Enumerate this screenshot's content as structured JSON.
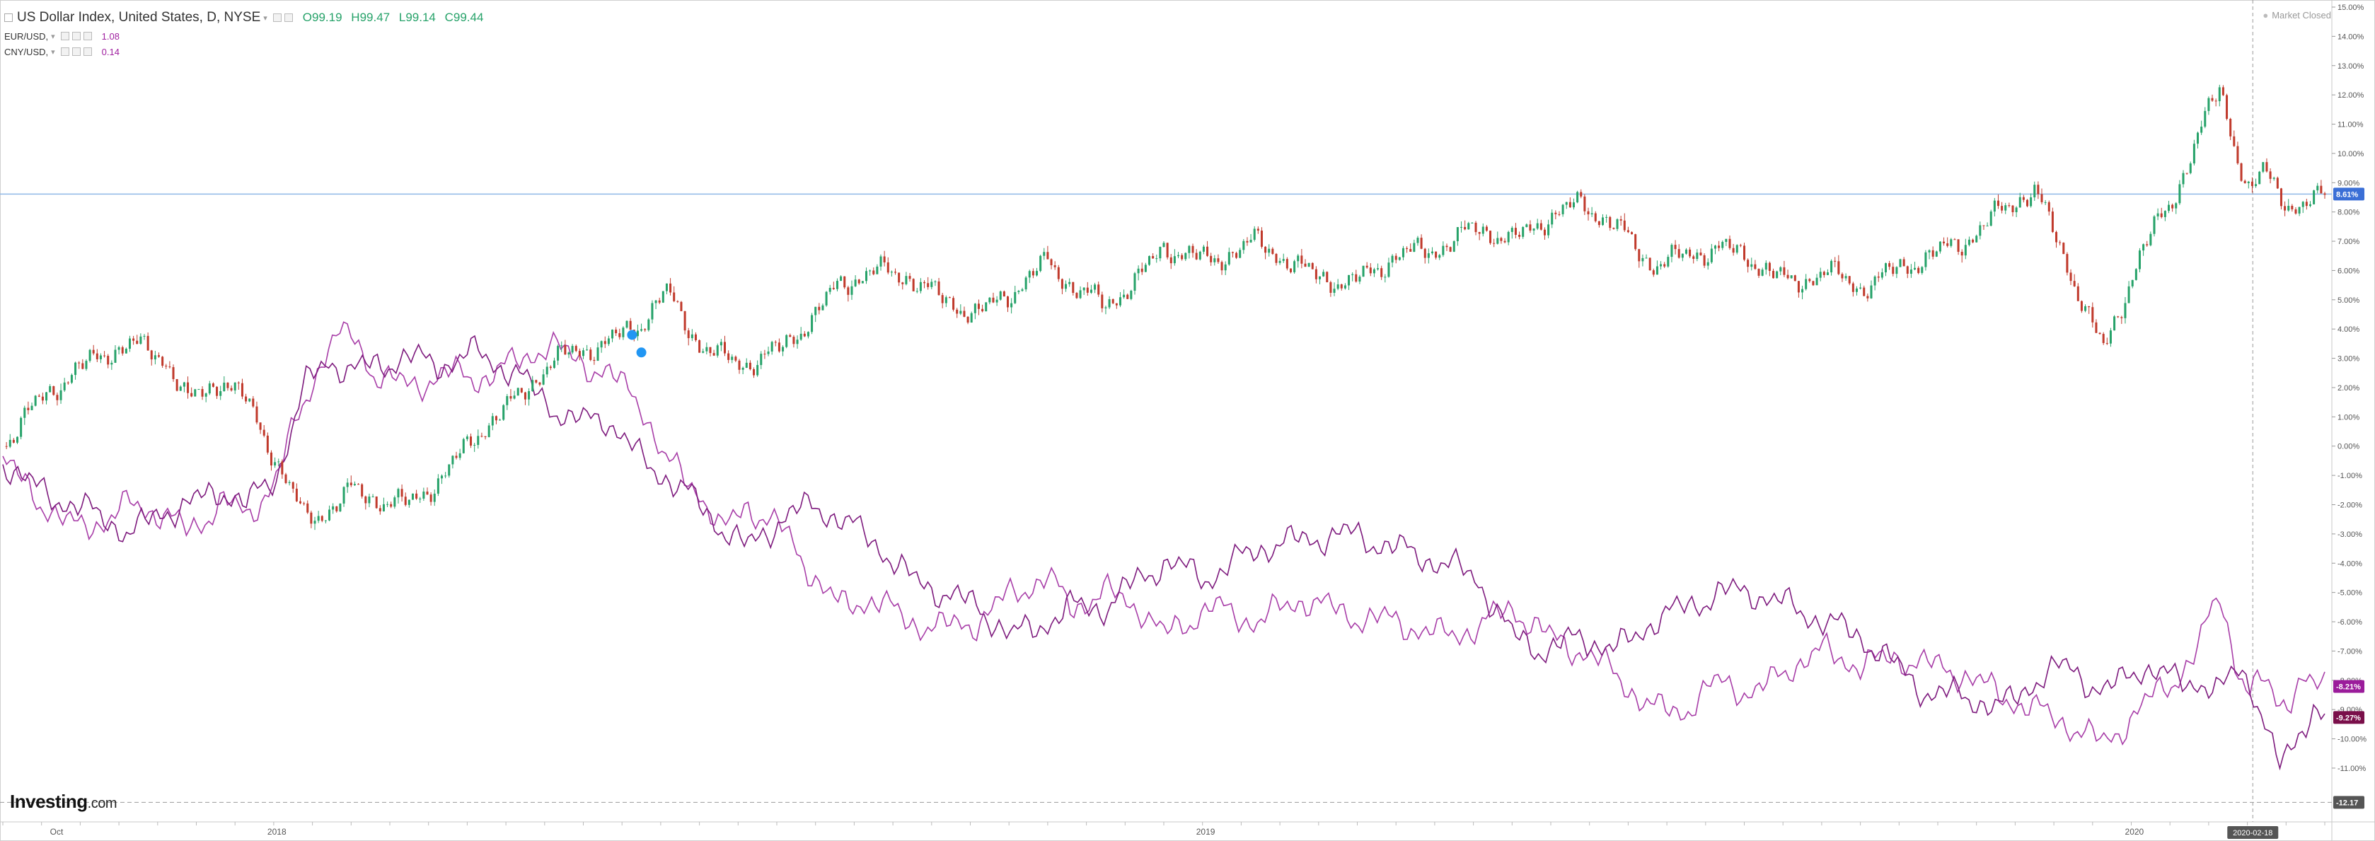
{
  "legend": {
    "main": {
      "name": "US Dollar Index, United States, D, NYSE",
      "open": "O99.19",
      "high": "H99.47",
      "low": "L99.14",
      "close": "C99.44"
    },
    "sub1": {
      "name": "EUR/USD,",
      "value": "1.08"
    },
    "sub2": {
      "name": "CNY/USD,",
      "value": "0.14"
    }
  },
  "status": {
    "market_closed": "Market Closed"
  },
  "logo": {
    "main": "Investing",
    "suffix": ".com"
  },
  "colors": {
    "up": "#26a269",
    "down": "#c0392b",
    "eur_line": "#a83ea8",
    "cny_line": "#7e1b7e",
    "ref_line": "#8fb8e6",
    "dxy_label": "#3b6fd6",
    "eur_label": "#9b1c9b",
    "cny_label": "#7a0f4a"
  },
  "chart_data": {
    "type": "line",
    "y_unit": "% change",
    "ylim": [
      -12.5,
      15
    ],
    "y_ticks": [
      "15.00%",
      "14.00%",
      "13.00%",
      "12.00%",
      "11.00%",
      "10.00%",
      "9.00%",
      "8.00%",
      "7.00%",
      "6.00%",
      "5.00%",
      "4.00%",
      "3.00%",
      "2.00%",
      "1.00%",
      "0.00%",
      "-1.00%",
      "-2.00%",
      "-3.00%",
      "-4.00%",
      "-5.00%",
      "-6.00%",
      "-7.00%",
      "-8.00%",
      "-9.00%",
      "-10.00%",
      "-11.00%"
    ],
    "y_tick_values": [
      15,
      14,
      13,
      12,
      11,
      10,
      9,
      8,
      7,
      6,
      5,
      4,
      3,
      2,
      1,
      0,
      -1,
      -2,
      -3,
      -4,
      -5,
      -6,
      -7,
      -8,
      -9,
      -10,
      -11
    ],
    "x_labels": [
      "Oct",
      "2018",
      "2019",
      "2020"
    ],
    "x_label_positions": [
      0.0,
      0.118,
      0.518,
      0.918
    ],
    "x_range": [
      0,
      1
    ],
    "crosshair": {
      "x": 0.969,
      "label": "2020-02-18"
    },
    "bottom_label": "-12.17",
    "bottom_label_value": -12.17,
    "series": [
      {
        "name": "US Dollar Index",
        "style": "candlestick",
        "last_label": "8.61%",
        "last_value": 8.61,
        "x": [
          0,
          0.015,
          0.03,
          0.045,
          0.055,
          0.07,
          0.08,
          0.095,
          0.105,
          0.118,
          0.13,
          0.14,
          0.15,
          0.16,
          0.175,
          0.19,
          0.205,
          0.22,
          0.235,
          0.245,
          0.26,
          0.275,
          0.285,
          0.3,
          0.31,
          0.32,
          0.335,
          0.35,
          0.36,
          0.375,
          0.39,
          0.405,
          0.42,
          0.435,
          0.45,
          0.46,
          0.475,
          0.49,
          0.5,
          0.52,
          0.54,
          0.56,
          0.58,
          0.6,
          0.62,
          0.635,
          0.65,
          0.665,
          0.68,
          0.695,
          0.71,
          0.725,
          0.74,
          0.755,
          0.77,
          0.785,
          0.8,
          0.815,
          0.83,
          0.845,
          0.86,
          0.875,
          0.89,
          0.905,
          0.92,
          0.935,
          0.945,
          0.955,
          0.962,
          0.968,
          0.974,
          0.98,
          0.985,
          0.99,
          0.995,
          1.0
        ],
        "values": [
          0.0,
          1.5,
          2.5,
          3.2,
          3.5,
          3.0,
          1.5,
          2.3,
          1.5,
          -0.5,
          -2.5,
          -2.2,
          -1.5,
          -1.8,
          -2.0,
          -1.0,
          0.5,
          1.5,
          2.8,
          3.2,
          3.5,
          4.2,
          5.3,
          3.5,
          3.0,
          2.8,
          3.3,
          4.5,
          5.5,
          6.0,
          5.8,
          5.0,
          4.5,
          5.3,
          6.3,
          5.5,
          4.8,
          5.8,
          6.8,
          6.3,
          7.0,
          6.0,
          5.5,
          6.5,
          6.8,
          7.5,
          7.0,
          7.8,
          8.3,
          7.5,
          6.2,
          6.5,
          6.8,
          6.3,
          5.5,
          6.0,
          5.4,
          6.0,
          6.5,
          7.0,
          8.0,
          8.8,
          6.0,
          3.2,
          6.5,
          8.5,
          10.5,
          12.3,
          10.0,
          8.5,
          9.5,
          8.7,
          8.3,
          8.0,
          8.4,
          8.6
        ]
      },
      {
        "name": "EUR/USD",
        "style": "line",
        "last_label": "-8.21%",
        "last_value": -8.21,
        "x": [
          0,
          0.015,
          0.03,
          0.045,
          0.055,
          0.07,
          0.08,
          0.095,
          0.105,
          0.118,
          0.13,
          0.14,
          0.15,
          0.16,
          0.175,
          0.19,
          0.205,
          0.22,
          0.235,
          0.245,
          0.26,
          0.275,
          0.285,
          0.3,
          0.31,
          0.32,
          0.335,
          0.35,
          0.36,
          0.375,
          0.39,
          0.405,
          0.42,
          0.435,
          0.45,
          0.46,
          0.475,
          0.49,
          0.5,
          0.52,
          0.54,
          0.56,
          0.58,
          0.6,
          0.62,
          0.635,
          0.65,
          0.665,
          0.68,
          0.695,
          0.71,
          0.725,
          0.74,
          0.755,
          0.77,
          0.785,
          0.8,
          0.815,
          0.83,
          0.845,
          0.86,
          0.875,
          0.89,
          0.905,
          0.92,
          0.935,
          0.945,
          0.955,
          0.962,
          0.968,
          0.974,
          0.98,
          0.985,
          0.99,
          0.995,
          1.0
        ],
        "values": [
          -0.5,
          -1.8,
          -2.8,
          -2.5,
          -2.0,
          -2.3,
          -3.0,
          -1.8,
          -2.5,
          -1.0,
          1.5,
          3.5,
          3.8,
          2.5,
          2.0,
          2.5,
          2.3,
          2.8,
          3.5,
          3.0,
          2.5,
          1.5,
          -0.5,
          -1.5,
          -3.0,
          -2.0,
          -2.8,
          -4.5,
          -5.5,
          -5.2,
          -6.0,
          -6.2,
          -6.0,
          -5.0,
          -4.5,
          -5.5,
          -5.0,
          -5.5,
          -6.5,
          -5.5,
          -6.0,
          -5.2,
          -5.8,
          -6.0,
          -6.5,
          -6.2,
          -5.5,
          -6.5,
          -7.0,
          -7.8,
          -9.0,
          -9.0,
          -8.0,
          -8.5,
          -7.5,
          -7.0,
          -7.5,
          -7.2,
          -7.5,
          -7.8,
          -8.5,
          -9.0,
          -9.5,
          -10.2,
          -9.0,
          -8.0,
          -7.0,
          -5.0,
          -7.5,
          -8.5,
          -8.0,
          -8.8,
          -8.5,
          -8.0,
          -8.3,
          -8.21
        ]
      },
      {
        "name": "CNY/USD",
        "style": "line",
        "last_label": "-9.27%",
        "last_value": -9.27,
        "x": [
          0,
          0.015,
          0.03,
          0.045,
          0.055,
          0.07,
          0.08,
          0.095,
          0.105,
          0.118,
          0.13,
          0.14,
          0.15,
          0.16,
          0.175,
          0.19,
          0.205,
          0.22,
          0.235,
          0.245,
          0.26,
          0.275,
          0.285,
          0.3,
          0.31,
          0.32,
          0.335,
          0.35,
          0.36,
          0.375,
          0.39,
          0.405,
          0.42,
          0.435,
          0.45,
          0.46,
          0.475,
          0.49,
          0.5,
          0.52,
          0.54,
          0.56,
          0.58,
          0.6,
          0.62,
          0.635,
          0.65,
          0.665,
          0.68,
          0.695,
          0.71,
          0.725,
          0.74,
          0.755,
          0.77,
          0.785,
          0.8,
          0.815,
          0.83,
          0.845,
          0.86,
          0.875,
          0.89,
          0.905,
          0.92,
          0.935,
          0.945,
          0.955,
          0.962,
          0.968,
          0.974,
          0.98,
          0.985,
          0.99,
          0.995,
          1.0
        ],
        "values": [
          -0.5,
          -1.5,
          -2.0,
          -2.5,
          -3.0,
          -2.2,
          -2.0,
          -1.5,
          -2.0,
          -1.0,
          2.0,
          3.0,
          2.5,
          2.8,
          3.0,
          2.8,
          3.2,
          2.5,
          1.5,
          0.8,
          1.0,
          -0.5,
          -1.0,
          -2.0,
          -2.8,
          -3.5,
          -2.5,
          -2.0,
          -2.5,
          -3.2,
          -4.5,
          -5.0,
          -5.5,
          -6.5,
          -6.0,
          -5.5,
          -5.5,
          -4.5,
          -4.0,
          -4.5,
          -3.5,
          -3.2,
          -3.0,
          -3.5,
          -4.0,
          -4.5,
          -6.5,
          -7.0,
          -6.5,
          -7.0,
          -6.0,
          -5.5,
          -5.0,
          -5.0,
          -5.5,
          -6.0,
          -6.5,
          -7.5,
          -8.5,
          -8.5,
          -9.0,
          -8.0,
          -7.5,
          -8.5,
          -7.5,
          -8.0,
          -8.0,
          -8.5,
          -7.5,
          -8.0,
          -9.5,
          -11.0,
          -10.5,
          -9.5,
          -9.0,
          -9.27
        ]
      }
    ],
    "horizontal_line": {
      "value": 8.61
    }
  }
}
